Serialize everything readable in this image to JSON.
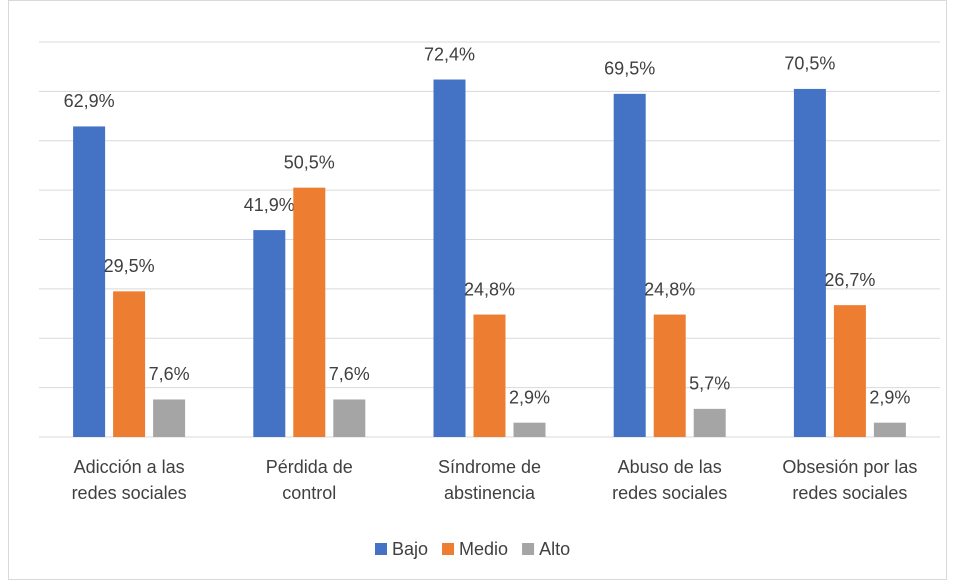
{
  "chart_data": {
    "type": "bar",
    "categories": [
      [
        "Adicción a las",
        "redes sociales"
      ],
      [
        "Pérdida de",
        "control"
      ],
      [
        "Síndrome de",
        "abstinencia"
      ],
      [
        "Abuso de las",
        "redes sociales"
      ],
      [
        "Obsesión por las",
        "redes sociales"
      ]
    ],
    "series": [
      {
        "name": "Bajo",
        "color": "#4472c4",
        "values": [
          62.9,
          41.9,
          72.4,
          69.5,
          70.5
        ],
        "value_labels": [
          "62,9%",
          "41,9%",
          "72,4%",
          "69,5%",
          "70,5%"
        ]
      },
      {
        "name": "Medio",
        "color": "#ed7d31",
        "values": [
          29.5,
          50.5,
          24.8,
          24.8,
          26.7
        ],
        "value_labels": [
          "29,5%",
          "50,5%",
          "24,8%",
          "24,8%",
          "26,7%"
        ]
      },
      {
        "name": "Alto",
        "color": "#a5a5a5",
        "values": [
          7.6,
          7.6,
          2.9,
          5.7,
          2.9
        ],
        "value_labels": [
          "7,6%",
          "7,6%",
          "2,9%",
          "5,7%",
          "2,9%"
        ]
      }
    ],
    "ylim": [
      0,
      80
    ],
    "yticks": [
      0,
      10,
      20,
      30,
      40,
      50,
      60,
      70,
      80
    ],
    "grid": true,
    "legend": "bottom"
  }
}
